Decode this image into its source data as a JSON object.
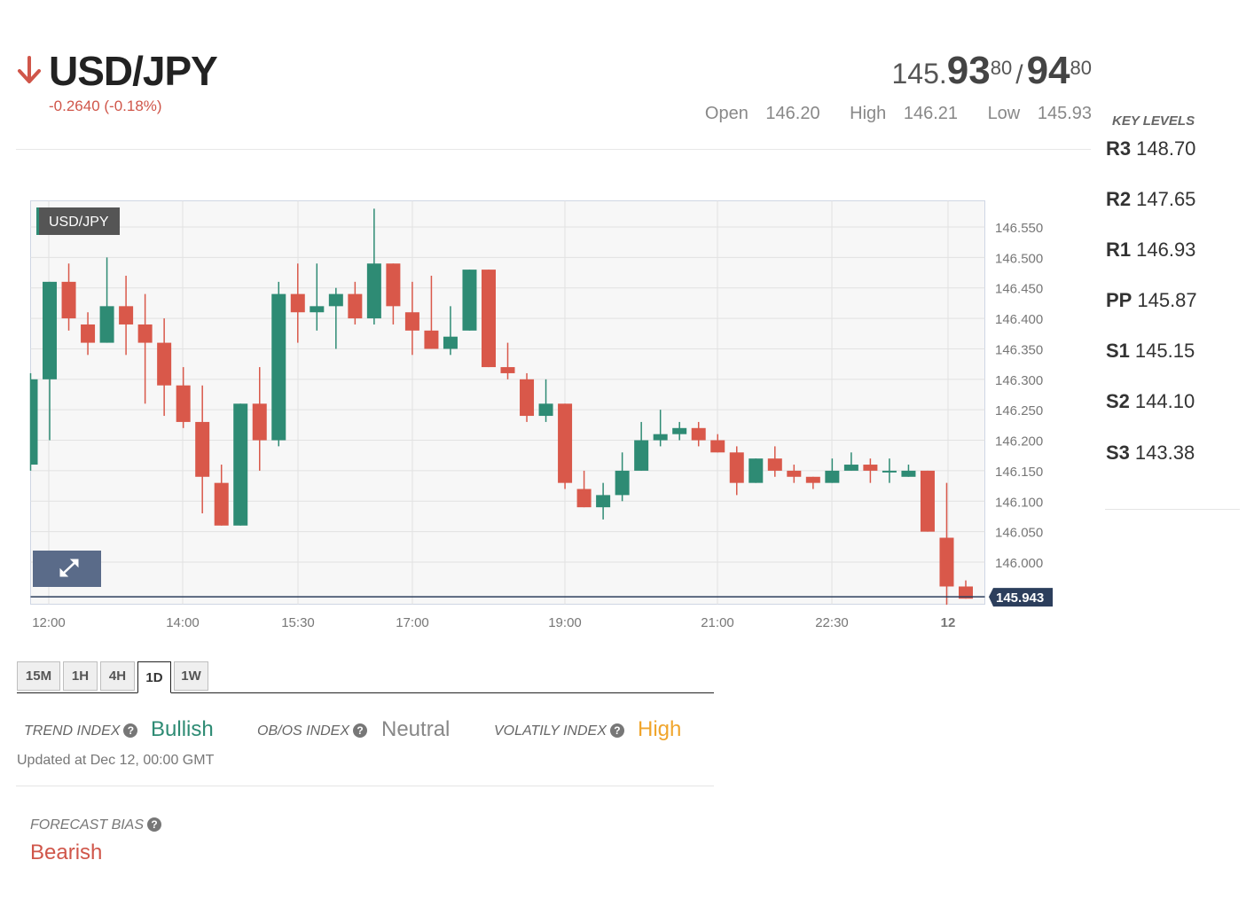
{
  "header": {
    "pair": "USD/JPY",
    "change": "-0.2640 (-0.18%)",
    "direction": "down",
    "bid_prefix": "145.",
    "bid_big": "93",
    "bid_sup": "80",
    "separator": "/",
    "ask_big": "94",
    "ask_sup": "80",
    "open_label": "Open",
    "open_value": "146.20",
    "high_label": "High",
    "high_value": "146.21",
    "low_label": "Low",
    "low_value": "145.93"
  },
  "key_levels": {
    "title": "KEY LEVELS",
    "items": [
      {
        "name": "R3",
        "value": "148.70"
      },
      {
        "name": "R2",
        "value": "147.65"
      },
      {
        "name": "R1",
        "value": "146.93"
      },
      {
        "name": "PP",
        "value": "145.87"
      },
      {
        "name": "S1",
        "value": "145.15"
      },
      {
        "name": "S2",
        "value": "144.10"
      },
      {
        "name": "S3",
        "value": "143.38"
      }
    ]
  },
  "chart_data": {
    "type": "candlestick",
    "symbol_badge": "USD/JPY",
    "x_tick_labels": [
      "12:00",
      "14:00",
      "15:30",
      "17:00",
      "19:00",
      "21:00",
      "22:30",
      "12"
    ],
    "y_tick_labels": [
      "146.550",
      "146.500",
      "146.450",
      "146.400",
      "146.350",
      "146.300",
      "146.250",
      "146.200",
      "146.150",
      "146.100",
      "146.050",
      "146.000"
    ],
    "ylim": [
      145.92,
      146.58
    ],
    "last_price": "145.943",
    "grid": true,
    "colors": {
      "up": "#2e8b74",
      "down": "#d9584a",
      "grid": "#e2e2e2",
      "price_tag": "#2c3e5c",
      "expand_button": "#5a6b89"
    },
    "candles": [
      {
        "o": 146.16,
        "h": 146.31,
        "l": 146.15,
        "c": 146.3
      },
      {
        "o": 146.3,
        "h": 146.46,
        "l": 146.2,
        "c": 146.46
      },
      {
        "o": 146.46,
        "h": 146.49,
        "l": 146.38,
        "c": 146.4
      },
      {
        "o": 146.39,
        "h": 146.41,
        "l": 146.34,
        "c": 146.36
      },
      {
        "o": 146.36,
        "h": 146.5,
        "l": 146.36,
        "c": 146.42
      },
      {
        "o": 146.42,
        "h": 146.47,
        "l": 146.34,
        "c": 146.39
      },
      {
        "o": 146.39,
        "h": 146.44,
        "l": 146.26,
        "c": 146.36
      },
      {
        "o": 146.36,
        "h": 146.4,
        "l": 146.24,
        "c": 146.29
      },
      {
        "o": 146.29,
        "h": 146.32,
        "l": 146.22,
        "c": 146.23
      },
      {
        "o": 146.23,
        "h": 146.29,
        "l": 146.08,
        "c": 146.14
      },
      {
        "o": 146.13,
        "h": 146.16,
        "l": 146.06,
        "c": 146.06
      },
      {
        "o": 146.06,
        "h": 146.26,
        "l": 146.06,
        "c": 146.26
      },
      {
        "o": 146.26,
        "h": 146.32,
        "l": 146.15,
        "c": 146.2
      },
      {
        "o": 146.2,
        "h": 146.46,
        "l": 146.19,
        "c": 146.44
      },
      {
        "o": 146.44,
        "h": 146.49,
        "l": 146.36,
        "c": 146.41
      },
      {
        "o": 146.41,
        "h": 146.49,
        "l": 146.38,
        "c": 146.42
      },
      {
        "o": 146.42,
        "h": 146.45,
        "l": 146.35,
        "c": 146.44
      },
      {
        "o": 146.44,
        "h": 146.46,
        "l": 146.39,
        "c": 146.4
      },
      {
        "o": 146.4,
        "h": 146.58,
        "l": 146.39,
        "c": 146.49
      },
      {
        "o": 146.49,
        "h": 146.49,
        "l": 146.39,
        "c": 146.42
      },
      {
        "o": 146.41,
        "h": 146.46,
        "l": 146.34,
        "c": 146.38
      },
      {
        "o": 146.38,
        "h": 146.47,
        "l": 146.35,
        "c": 146.35
      },
      {
        "o": 146.35,
        "h": 146.42,
        "l": 146.34,
        "c": 146.37
      },
      {
        "o": 146.38,
        "h": 146.48,
        "l": 146.38,
        "c": 146.48
      },
      {
        "o": 146.48,
        "h": 146.48,
        "l": 146.32,
        "c": 146.32
      },
      {
        "o": 146.32,
        "h": 146.36,
        "l": 146.3,
        "c": 146.31
      },
      {
        "o": 146.3,
        "h": 146.31,
        "l": 146.23,
        "c": 146.24
      },
      {
        "o": 146.24,
        "h": 146.3,
        "l": 146.23,
        "c": 146.26
      },
      {
        "o": 146.26,
        "h": 146.26,
        "l": 146.12,
        "c": 146.13
      },
      {
        "o": 146.12,
        "h": 146.15,
        "l": 146.09,
        "c": 146.09
      },
      {
        "o": 146.09,
        "h": 146.13,
        "l": 146.07,
        "c": 146.11
      },
      {
        "o": 146.11,
        "h": 146.18,
        "l": 146.1,
        "c": 146.15
      },
      {
        "o": 146.15,
        "h": 146.23,
        "l": 146.15,
        "c": 146.2
      },
      {
        "o": 146.2,
        "h": 146.25,
        "l": 146.19,
        "c": 146.21
      },
      {
        "o": 146.21,
        "h": 146.23,
        "l": 146.2,
        "c": 146.22
      },
      {
        "o": 146.22,
        "h": 146.23,
        "l": 146.19,
        "c": 146.2
      },
      {
        "o": 146.2,
        "h": 146.21,
        "l": 146.18,
        "c": 146.18
      },
      {
        "o": 146.18,
        "h": 146.19,
        "l": 146.11,
        "c": 146.13
      },
      {
        "o": 146.13,
        "h": 146.17,
        "l": 146.13,
        "c": 146.17
      },
      {
        "o": 146.17,
        "h": 146.19,
        "l": 146.14,
        "c": 146.15
      },
      {
        "o": 146.15,
        "h": 146.16,
        "l": 146.13,
        "c": 146.14
      },
      {
        "o": 146.14,
        "h": 146.14,
        "l": 146.12,
        "c": 146.13
      },
      {
        "o": 146.13,
        "h": 146.17,
        "l": 146.13,
        "c": 146.15
      },
      {
        "o": 146.15,
        "h": 146.18,
        "l": 146.15,
        "c": 146.16
      },
      {
        "o": 146.16,
        "h": 146.17,
        "l": 146.13,
        "c": 146.15
      },
      {
        "o": 146.15,
        "h": 146.17,
        "l": 146.13,
        "c": 146.15
      },
      {
        "o": 146.14,
        "h": 146.16,
        "l": 146.14,
        "c": 146.15
      },
      {
        "o": 146.15,
        "h": 146.15,
        "l": 146.05,
        "c": 146.05
      },
      {
        "o": 146.04,
        "h": 146.13,
        "l": 145.93,
        "c": 145.96
      },
      {
        "o": 145.96,
        "h": 145.97,
        "l": 145.94,
        "c": 145.94
      }
    ]
  },
  "timeframes": {
    "tabs": [
      {
        "label": "15M",
        "active": false
      },
      {
        "label": "1H",
        "active": false
      },
      {
        "label": "4H",
        "active": false
      },
      {
        "label": "1D",
        "active": true
      },
      {
        "label": "1W",
        "active": false
      }
    ]
  },
  "indexes": {
    "trend_label": "TREND INDEX",
    "trend_value": "Bullish",
    "trend_color": "#2e8b74",
    "obos_label": "OB/OS INDEX",
    "obos_value": "Neutral",
    "obos_color": "#888888",
    "volatility_label": "VOLATILY INDEX",
    "volatility_value": "High",
    "volatility_color": "#f0a52c",
    "updated": "Updated at Dec 12, 00:00 GMT",
    "help_icon": "?"
  },
  "forecast": {
    "label": "FORECAST BIAS",
    "value": "Bearish",
    "color": "#d0564a"
  }
}
